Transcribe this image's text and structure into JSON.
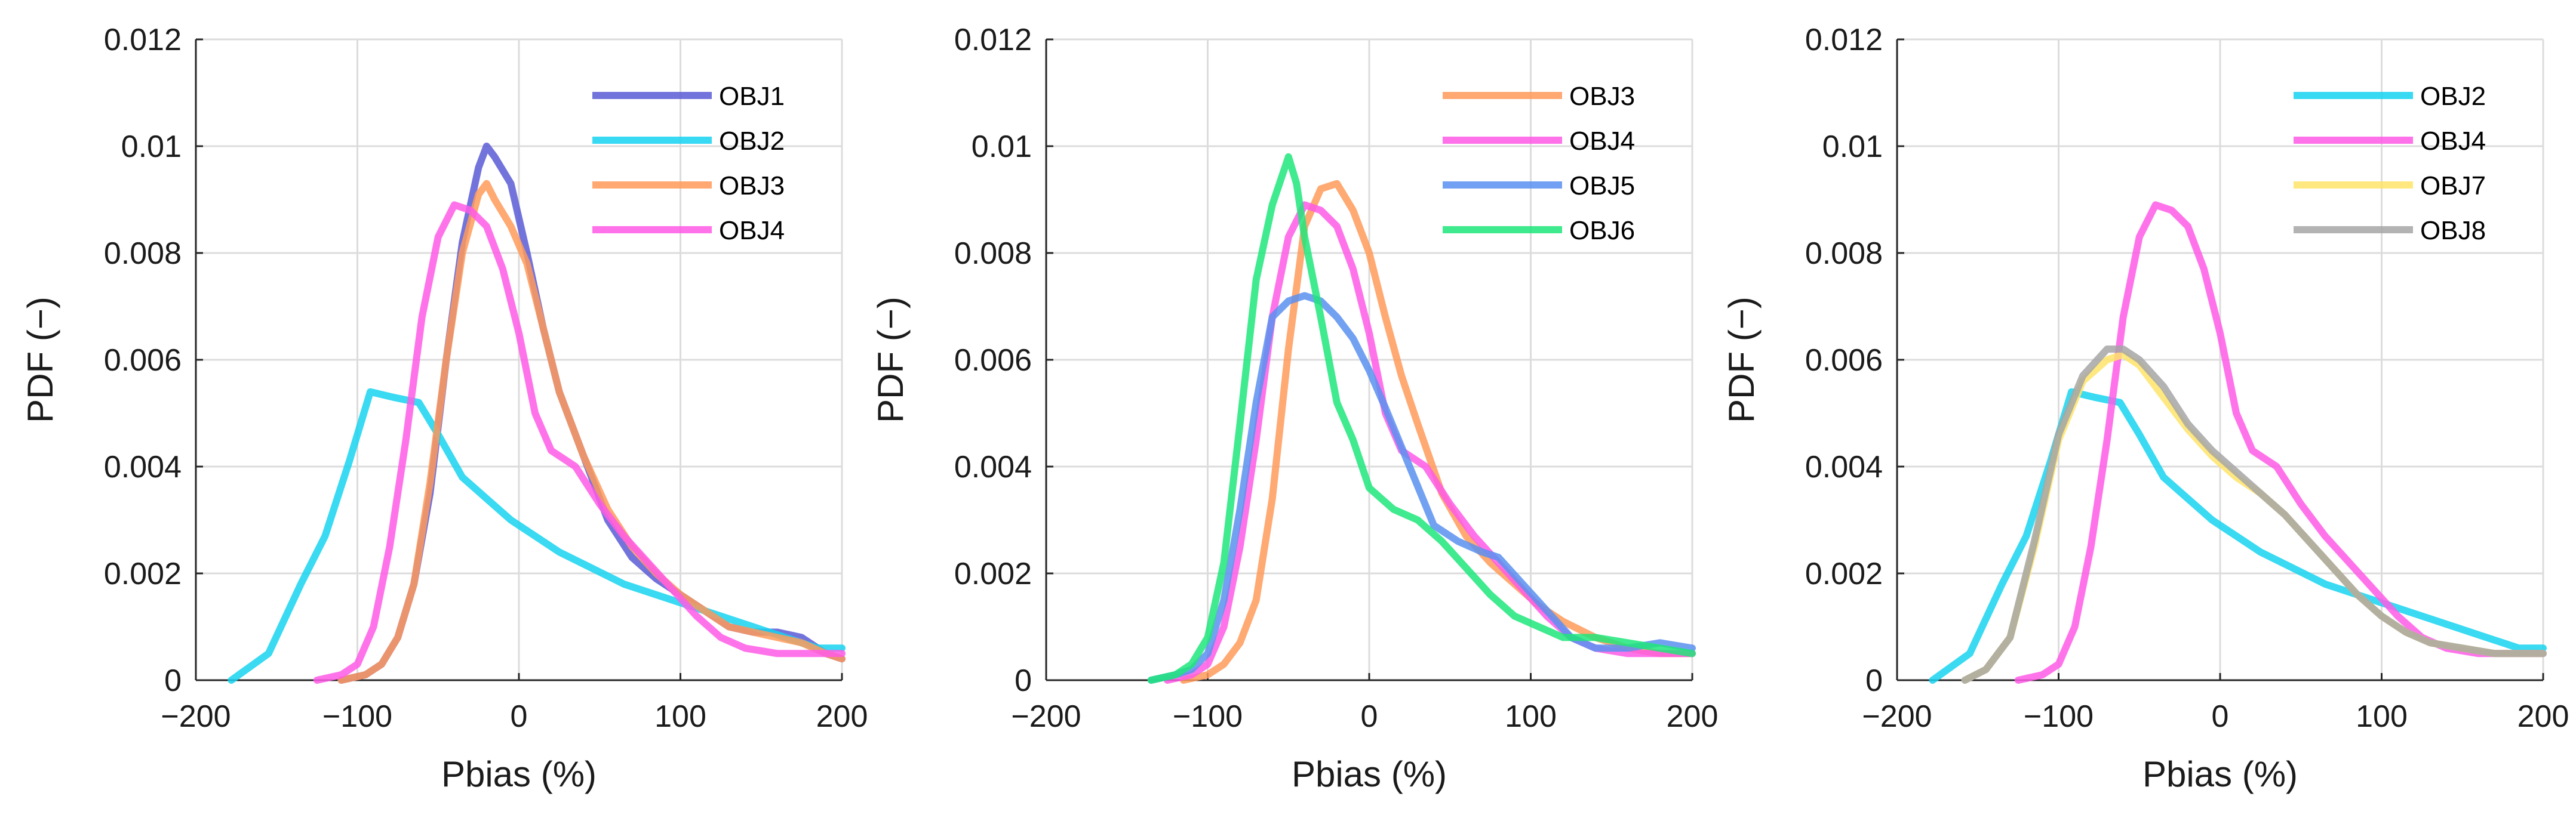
{
  "colors": {
    "OBJ1": "#5b5bd6",
    "OBJ2": "#16d3f0",
    "OBJ3": "#ff9a5a",
    "OBJ4": "#ff5ae6",
    "OBJ5": "#5a90f0",
    "OBJ6": "#1ee67a",
    "OBJ7": "#ffe46a",
    "OBJ8": "#a6a6a6"
  },
  "chart_data": [
    {
      "type": "line",
      "title": "",
      "xlabel": "Pbias (%)",
      "ylabel": "PDF (−)",
      "xlim": [
        -200,
        200
      ],
      "ylim": [
        0,
        0.012
      ],
      "xticks": [
        -200,
        -100,
        0,
        100,
        200
      ],
      "xtick_labels": [
        "−200",
        "−100",
        "0",
        "100",
        "200"
      ],
      "yticks": [
        0,
        0.002,
        0.004,
        0.006,
        0.008,
        0.01,
        0.012
      ],
      "ytick_labels": [
        "0",
        "0.002",
        "0.004",
        "0.006",
        "0.008",
        "0.01",
        "0.012"
      ],
      "grid": true,
      "legend_position": "top-right",
      "series": [
        {
          "name": "OBJ1",
          "x": [
            -110,
            -95,
            -85,
            -75,
            -65,
            -55,
            -45,
            -35,
            -25,
            -20,
            -15,
            -5,
            5,
            15,
            25,
            40,
            55,
            70,
            85,
            100,
            115,
            130,
            145,
            160,
            175,
            190,
            200
          ],
          "y": [
            0,
            0.0001,
            0.0003,
            0.0008,
            0.0018,
            0.0035,
            0.006,
            0.0082,
            0.0096,
            0.01,
            0.0098,
            0.0093,
            0.008,
            0.0066,
            0.0054,
            0.0042,
            0.003,
            0.0023,
            0.0019,
            0.0016,
            0.0013,
            0.001,
            0.0009,
            0.0009,
            0.0008,
            0.0005,
            0.0004
          ]
        },
        {
          "name": "OBJ2",
          "x": [
            -178,
            -155,
            -135,
            -120,
            -105,
            -92,
            -78,
            -62,
            -50,
            -35,
            -20,
            -5,
            10,
            25,
            45,
            65,
            85,
            105,
            125,
            145,
            165,
            185,
            200
          ],
          "y": [
            0,
            0.0005,
            0.0018,
            0.0027,
            0.0041,
            0.0054,
            0.0053,
            0.0052,
            0.0046,
            0.0038,
            0.0034,
            0.003,
            0.0027,
            0.0024,
            0.0021,
            0.0018,
            0.0016,
            0.0014,
            0.0012,
            0.001,
            0.0008,
            0.0006,
            0.0006
          ]
        },
        {
          "name": "OBJ3",
          "x": [
            -110,
            -95,
            -85,
            -75,
            -65,
            -55,
            -45,
            -35,
            -25,
            -20,
            -15,
            -5,
            5,
            15,
            25,
            40,
            55,
            70,
            85,
            100,
            115,
            130,
            145,
            160,
            175,
            190,
            200
          ],
          "y": [
            0,
            0.0001,
            0.0003,
            0.0008,
            0.0018,
            0.0037,
            0.006,
            0.008,
            0.0091,
            0.0093,
            0.009,
            0.0085,
            0.0078,
            0.0066,
            0.0054,
            0.0042,
            0.0032,
            0.0025,
            0.002,
            0.0016,
            0.0013,
            0.001,
            0.0009,
            0.0008,
            0.0007,
            0.0005,
            0.0004
          ]
        },
        {
          "name": "OBJ4",
          "x": [
            -125,
            -110,
            -100,
            -90,
            -80,
            -70,
            -60,
            -50,
            -40,
            -30,
            -20,
            -10,
            0,
            10,
            20,
            35,
            50,
            65,
            80,
            95,
            110,
            125,
            140,
            160,
            180,
            200
          ],
          "y": [
            0,
            0.0001,
            0.0003,
            0.001,
            0.0025,
            0.0045,
            0.0068,
            0.0083,
            0.0089,
            0.0088,
            0.0085,
            0.0077,
            0.0065,
            0.005,
            0.0043,
            0.004,
            0.0033,
            0.0027,
            0.0022,
            0.0017,
            0.0012,
            0.0008,
            0.0006,
            0.0005,
            0.0005,
            0.0005
          ]
        }
      ]
    },
    {
      "type": "line",
      "title": "",
      "xlabel": "Pbias (%)",
      "ylabel": "PDF (−)",
      "xlim": [
        -200,
        200
      ],
      "ylim": [
        0,
        0.012
      ],
      "xticks": [
        -200,
        -100,
        0,
        100,
        200
      ],
      "xtick_labels": [
        "−200",
        "−100",
        "0",
        "100",
        "200"
      ],
      "yticks": [
        0,
        0.002,
        0.004,
        0.006,
        0.008,
        0.01,
        0.012
      ],
      "ytick_labels": [
        "0",
        "0.002",
        "0.004",
        "0.006",
        "0.008",
        "0.01",
        "0.012"
      ],
      "grid": true,
      "legend_position": "top-right",
      "series": [
        {
          "name": "OBJ3",
          "x": [
            -115,
            -100,
            -90,
            -80,
            -70,
            -60,
            -50,
            -40,
            -30,
            -20,
            -10,
            0,
            10,
            20,
            30,
            45,
            60,
            75,
            90,
            105,
            120,
            140,
            160,
            180,
            200
          ],
          "y": [
            0,
            0.0001,
            0.0003,
            0.0007,
            0.0015,
            0.0034,
            0.0062,
            0.0085,
            0.0092,
            0.0093,
            0.0088,
            0.008,
            0.0068,
            0.0057,
            0.0048,
            0.0035,
            0.0027,
            0.0022,
            0.0018,
            0.0014,
            0.0011,
            0.0008,
            0.0006,
            0.0005,
            0.0005
          ]
        },
        {
          "name": "OBJ4",
          "x": [
            -125,
            -110,
            -100,
            -90,
            -80,
            -70,
            -60,
            -50,
            -40,
            -30,
            -20,
            -10,
            0,
            10,
            20,
            35,
            50,
            65,
            80,
            95,
            110,
            125,
            140,
            160,
            180,
            200
          ],
          "y": [
            0,
            0.0001,
            0.0003,
            0.001,
            0.0025,
            0.0045,
            0.0068,
            0.0083,
            0.0089,
            0.0088,
            0.0085,
            0.0077,
            0.0065,
            0.005,
            0.0043,
            0.004,
            0.0033,
            0.0027,
            0.0022,
            0.0017,
            0.0012,
            0.0008,
            0.0006,
            0.0005,
            0.0005,
            0.0005
          ]
        },
        {
          "name": "OBJ5",
          "x": [
            -135,
            -120,
            -110,
            -100,
            -90,
            -80,
            -70,
            -60,
            -50,
            -40,
            -30,
            -20,
            -10,
            0,
            10,
            25,
            40,
            55,
            70,
            80,
            95,
            110,
            125,
            140,
            160,
            180,
            200
          ],
          "y": [
            0,
            0.0001,
            0.0002,
            0.0005,
            0.0015,
            0.0032,
            0.0052,
            0.0068,
            0.0071,
            0.0072,
            0.0071,
            0.0068,
            0.0064,
            0.0058,
            0.0051,
            0.004,
            0.0029,
            0.0026,
            0.0024,
            0.0023,
            0.0018,
            0.0013,
            0.0008,
            0.0006,
            0.0006,
            0.0007,
            0.0006
          ]
        },
        {
          "name": "OBJ6",
          "x": [
            -135,
            -120,
            -110,
            -100,
            -90,
            -80,
            -70,
            -60,
            -50,
            -45,
            -40,
            -30,
            -20,
            -10,
            0,
            15,
            30,
            45,
            60,
            75,
            90,
            105,
            120,
            140,
            160,
            180,
            200
          ],
          "y": [
            0,
            0.0001,
            0.0003,
            0.0008,
            0.0022,
            0.0048,
            0.0075,
            0.0089,
            0.0098,
            0.0093,
            0.0083,
            0.0068,
            0.0052,
            0.0045,
            0.0036,
            0.0032,
            0.003,
            0.0026,
            0.0021,
            0.0016,
            0.0012,
            0.001,
            0.0008,
            0.0008,
            0.0007,
            0.0006,
            0.0005
          ]
        }
      ]
    },
    {
      "type": "line",
      "title": "",
      "xlabel": "Pbias (%)",
      "ylabel": "PDF (−)",
      "xlim": [
        -200,
        200
      ],
      "ylim": [
        0,
        0.012
      ],
      "xticks": [
        -200,
        -100,
        0,
        100,
        200
      ],
      "xtick_labels": [
        "−200",
        "−100",
        "0",
        "100",
        "200"
      ],
      "yticks": [
        0,
        0.002,
        0.004,
        0.006,
        0.008,
        0.01,
        0.012
      ],
      "ytick_labels": [
        "0",
        "0.002",
        "0.004",
        "0.006",
        "0.008",
        "0.01",
        "0.012"
      ],
      "grid": true,
      "legend_position": "top-right",
      "series": [
        {
          "name": "OBJ2",
          "x": [
            -178,
            -155,
            -135,
            -120,
            -105,
            -92,
            -78,
            -62,
            -50,
            -35,
            -20,
            -5,
            10,
            25,
            45,
            65,
            85,
            105,
            125,
            145,
            165,
            185,
            200
          ],
          "y": [
            0,
            0.0005,
            0.0018,
            0.0027,
            0.0041,
            0.0054,
            0.0053,
            0.0052,
            0.0046,
            0.0038,
            0.0034,
            0.003,
            0.0027,
            0.0024,
            0.0021,
            0.0018,
            0.0016,
            0.0014,
            0.0012,
            0.001,
            0.0008,
            0.0006,
            0.0006
          ]
        },
        {
          "name": "OBJ4",
          "x": [
            -125,
            -110,
            -100,
            -90,
            -80,
            -70,
            -60,
            -50,
            -40,
            -30,
            -20,
            -10,
            0,
            10,
            20,
            35,
            50,
            65,
            80,
            95,
            110,
            125,
            140,
            160,
            180,
            200
          ],
          "y": [
            0,
            0.0001,
            0.0003,
            0.001,
            0.0025,
            0.0045,
            0.0068,
            0.0083,
            0.0089,
            0.0088,
            0.0085,
            0.0077,
            0.0065,
            0.005,
            0.0043,
            0.004,
            0.0033,
            0.0027,
            0.0022,
            0.0017,
            0.0012,
            0.0008,
            0.0006,
            0.0005,
            0.0005,
            0.0005
          ]
        },
        {
          "name": "OBJ7",
          "x": [
            -158,
            -145,
            -130,
            -115,
            -100,
            -85,
            -70,
            -60,
            -50,
            -35,
            -20,
            -5,
            10,
            25,
            40,
            55,
            70,
            85,
            100,
            115,
            130,
            150,
            170,
            190,
            200
          ],
          "y": [
            0,
            0.0002,
            0.0008,
            0.0025,
            0.0045,
            0.0056,
            0.006,
            0.0061,
            0.0059,
            0.0053,
            0.0047,
            0.0042,
            0.0038,
            0.0035,
            0.0031,
            0.0026,
            0.0021,
            0.0016,
            0.0012,
            0.0009,
            0.0007,
            0.0006,
            0.0005,
            0.0005,
            0.0005
          ]
        },
        {
          "name": "OBJ8",
          "x": [
            -158,
            -145,
            -130,
            -115,
            -100,
            -85,
            -70,
            -60,
            -50,
            -35,
            -20,
            -5,
            10,
            25,
            40,
            55,
            70,
            85,
            100,
            115,
            130,
            150,
            170,
            190,
            200
          ],
          "y": [
            0,
            0.0002,
            0.0008,
            0.0026,
            0.0046,
            0.0057,
            0.0062,
            0.0062,
            0.006,
            0.0055,
            0.0048,
            0.0043,
            0.0039,
            0.0035,
            0.0031,
            0.0026,
            0.0021,
            0.0016,
            0.0012,
            0.0009,
            0.0007,
            0.0006,
            0.0005,
            0.0005,
            0.0005
          ]
        }
      ]
    }
  ]
}
